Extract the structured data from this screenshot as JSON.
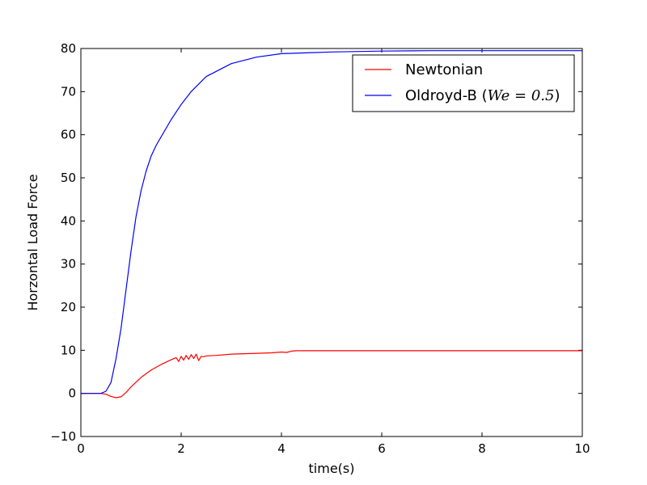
{
  "chart_data": {
    "type": "line",
    "title": "",
    "xlabel": "time(s)",
    "ylabel": "Horzontal Load Force",
    "xlim": [
      0,
      10
    ],
    "ylim": [
      -10,
      80
    ],
    "xticks": [
      0,
      2,
      4,
      6,
      8,
      10
    ],
    "yticks": [
      -10,
      0,
      10,
      20,
      30,
      40,
      50,
      60,
      70,
      80
    ],
    "grid": false,
    "legend_position": "top-right",
    "series": [
      {
        "name": "Newtonian",
        "color": "#ff0000",
        "x": [
          0,
          0.4,
          0.5,
          0.6,
          0.7,
          0.8,
          0.9,
          1.0,
          1.2,
          1.4,
          1.6,
          1.8,
          1.9,
          1.95,
          2.0,
          2.05,
          2.1,
          2.15,
          2.2,
          2.25,
          2.3,
          2.35,
          2.4,
          2.45,
          2.5,
          2.7,
          3.0,
          3.5,
          3.8,
          4.0,
          4.1,
          4.2,
          4.3,
          5.0,
          6.0,
          8.0,
          10.0
        ],
        "y": [
          0,
          0,
          -0.2,
          -0.7,
          -1.0,
          -0.8,
          0.2,
          1.5,
          3.7,
          5.4,
          6.7,
          7.8,
          8.3,
          7.4,
          8.6,
          7.7,
          8.8,
          7.9,
          9.0,
          8.1,
          9.1,
          7.6,
          8.6,
          8.5,
          8.7,
          8.8,
          9.1,
          9.3,
          9.4,
          9.6,
          9.5,
          9.8,
          9.9,
          9.9,
          9.9,
          9.9,
          9.9
        ]
      },
      {
        "name": "Oldroyd-B (We = 0.5)",
        "color": "#0000ff",
        "x": [
          0,
          0.4,
          0.5,
          0.6,
          0.7,
          0.8,
          0.9,
          1.0,
          1.1,
          1.2,
          1.3,
          1.4,
          1.5,
          1.6,
          1.8,
          2.0,
          2.2,
          2.5,
          3.0,
          3.5,
          4.0,
          5.0,
          6.0,
          7.0,
          8.0,
          9.0,
          10.0
        ],
        "y": [
          0,
          0,
          0.5,
          2.5,
          8,
          15,
          24,
          33,
          41,
          47,
          51.5,
          55,
          57.5,
          59.5,
          63.5,
          67,
          70,
          73.5,
          76.5,
          78,
          78.8,
          79.2,
          79.4,
          79.5,
          79.5,
          79.5,
          79.5
        ]
      }
    ]
  },
  "legend": {
    "items": [
      {
        "label": "Newtonian",
        "prefix": "Newtonian",
        "math": "",
        "suffix": ""
      },
      {
        "label": "Oldroyd-B (We = 0.5)",
        "prefix": "Oldroyd-B (",
        "math": "We = 0.5",
        "suffix": ")"
      }
    ]
  }
}
